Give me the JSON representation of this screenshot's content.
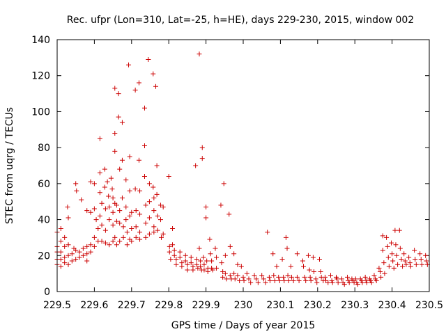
{
  "chart_data": {
    "type": "scatter",
    "title": "Rec. ufpr (Lon=310, Lat=-25, h=HE), days 229-230, 2015, window 002",
    "xlabel": "GPS time / Days of year 2015",
    "ylabel": "STEC from uqrg / TECUs",
    "xlim": [
      229.5,
      230.5
    ],
    "ylim": [
      0,
      140
    ],
    "xticks": [
      229.5,
      229.6,
      229.7,
      229.8,
      229.9,
      230.0,
      230.1,
      230.2,
      230.3,
      230.4,
      230.5
    ],
    "xtick_labels": [
      "229.5",
      "229.6",
      "229.7",
      "229.8",
      "229.9",
      "230",
      "230.1",
      "230.2",
      "230.3",
      "230.4",
      "230.5"
    ],
    "yticks": [
      0,
      20,
      40,
      60,
      80,
      100,
      120,
      140
    ],
    "ytick_labels": [
      "0",
      "20",
      "40",
      "60",
      "80",
      "100",
      "120",
      "140"
    ],
    "marker": "plus",
    "color": "#cc0000",
    "grid": false,
    "points": [
      [
        229.5,
        33
      ],
      [
        229.5,
        25
      ],
      [
        229.5,
        22
      ],
      [
        229.5,
        18
      ],
      [
        229.5,
        15
      ],
      [
        229.51,
        35
      ],
      [
        229.51,
        28
      ],
      [
        229.51,
        22
      ],
      [
        229.51,
        18
      ],
      [
        229.51,
        14
      ],
      [
        229.52,
        30
      ],
      [
        229.52,
        25
      ],
      [
        229.52,
        19
      ],
      [
        229.52,
        16
      ],
      [
        229.528,
        47
      ],
      [
        229.53,
        41
      ],
      [
        229.53,
        26
      ],
      [
        229.53,
        20
      ],
      [
        229.53,
        15
      ],
      [
        229.54,
        21
      ],
      [
        229.54,
        17
      ],
      [
        229.545,
        24
      ],
      [
        229.55,
        60
      ],
      [
        229.552,
        56
      ],
      [
        229.55,
        23
      ],
      [
        229.55,
        18
      ],
      [
        229.56,
        22
      ],
      [
        229.56,
        19
      ],
      [
        229.565,
        51
      ],
      [
        229.57,
        24
      ],
      [
        229.57,
        20
      ],
      [
        229.58,
        45
      ],
      [
        229.58,
        25
      ],
      [
        229.58,
        21
      ],
      [
        229.58,
        17
      ],
      [
        229.59,
        61
      ],
      [
        229.59,
        44
      ],
      [
        229.59,
        26
      ],
      [
        229.59,
        22
      ],
      [
        229.6,
        60
      ],
      [
        229.6,
        46
      ],
      [
        229.6,
        30
      ],
      [
        229.6,
        25
      ],
      [
        229.605,
        40
      ],
      [
        229.61,
        35
      ],
      [
        229.61,
        28
      ],
      [
        229.615,
        85
      ],
      [
        229.615,
        66
      ],
      [
        229.615,
        55
      ],
      [
        229.615,
        42
      ],
      [
        229.62,
        49
      ],
      [
        229.62,
        37
      ],
      [
        229.62,
        28
      ],
      [
        229.628,
        68
      ],
      [
        229.628,
        58
      ],
      [
        229.63,
        46
      ],
      [
        229.63,
        34
      ],
      [
        229.63,
        27
      ],
      [
        229.635,
        61
      ],
      [
        229.638,
        53
      ],
      [
        229.64,
        47
      ],
      [
        229.64,
        40
      ],
      [
        229.64,
        26
      ],
      [
        229.645,
        63
      ],
      [
        229.648,
        57
      ],
      [
        229.65,
        52
      ],
      [
        229.65,
        44
      ],
      [
        229.65,
        37
      ],
      [
        229.65,
        28
      ],
      [
        229.655,
        113
      ],
      [
        229.655,
        88
      ],
      [
        229.655,
        78
      ],
      [
        229.655,
        49
      ],
      [
        229.655,
        30
      ],
      [
        229.66,
        48
      ],
      [
        229.66,
        39
      ],
      [
        229.66,
        26
      ],
      [
        229.665,
        110
      ],
      [
        229.665,
        97
      ],
      [
        229.668,
        68
      ],
      [
        229.668,
        45
      ],
      [
        229.668,
        38
      ],
      [
        229.668,
        28
      ],
      [
        229.675,
        94
      ],
      [
        229.675,
        73
      ],
      [
        229.675,
        52
      ],
      [
        229.678,
        36
      ],
      [
        229.678,
        30
      ],
      [
        229.685,
        62
      ],
      [
        229.685,
        47
      ],
      [
        229.685,
        40
      ],
      [
        229.688,
        33
      ],
      [
        229.688,
        26
      ],
      [
        229.692,
        126
      ],
      [
        229.695,
        75
      ],
      [
        229.695,
        56
      ],
      [
        229.695,
        42
      ],
      [
        229.695,
        29
      ],
      [
        229.7,
        44
      ],
      [
        229.7,
        35
      ],
      [
        229.7,
        28
      ],
      [
        229.71,
        112
      ],
      [
        229.71,
        57
      ],
      [
        229.712,
        45
      ],
      [
        229.712,
        36
      ],
      [
        229.712,
        30
      ],
      [
        229.72,
        116
      ],
      [
        229.72,
        73
      ],
      [
        229.722,
        56
      ],
      [
        229.722,
        43
      ],
      [
        229.722,
        33
      ],
      [
        229.722,
        29
      ],
      [
        229.735,
        102
      ],
      [
        229.735,
        81
      ],
      [
        229.735,
        64
      ],
      [
        229.738,
        48
      ],
      [
        229.738,
        38
      ],
      [
        229.738,
        30
      ],
      [
        229.745,
        129
      ],
      [
        229.748,
        60
      ],
      [
        229.748,
        50
      ],
      [
        229.748,
        41
      ],
      [
        229.748,
        32
      ],
      [
        229.758,
        121
      ],
      [
        229.758,
        58
      ],
      [
        229.76,
        52
      ],
      [
        229.76,
        45
      ],
      [
        229.76,
        36
      ],
      [
        229.76,
        33
      ],
      [
        229.765,
        114
      ],
      [
        229.768,
        70
      ],
      [
        229.768,
        54
      ],
      [
        229.77,
        42
      ],
      [
        229.77,
        34
      ],
      [
        229.778,
        48
      ],
      [
        229.778,
        40
      ],
      [
        229.78,
        30
      ],
      [
        229.785,
        47
      ],
      [
        229.785,
        32
      ],
      [
        229.8,
        64
      ],
      [
        229.802,
        25
      ],
      [
        229.802,
        22
      ],
      [
        229.805,
        18
      ],
      [
        229.81,
        35
      ],
      [
        229.81,
        26
      ],
      [
        229.815,
        23
      ],
      [
        229.815,
        20
      ],
      [
        229.82,
        18
      ],
      [
        229.82,
        15
      ],
      [
        229.83,
        22
      ],
      [
        229.83,
        19
      ],
      [
        229.835,
        16
      ],
      [
        229.835,
        14
      ],
      [
        229.845,
        20
      ],
      [
        229.845,
        17
      ],
      [
        229.85,
        15
      ],
      [
        229.85,
        12
      ],
      [
        229.86,
        19
      ],
      [
        229.86,
        16
      ],
      [
        229.865,
        14
      ],
      [
        229.865,
        12
      ],
      [
        229.872,
        70
      ],
      [
        229.875,
        18
      ],
      [
        229.875,
        15
      ],
      [
        229.878,
        13
      ],
      [
        229.882,
        132
      ],
      [
        229.882,
        24
      ],
      [
        229.885,
        17
      ],
      [
        229.885,
        14
      ],
      [
        229.888,
        12
      ],
      [
        229.89,
        80
      ],
      [
        229.89,
        74
      ],
      [
        229.893,
        19
      ],
      [
        229.895,
        15
      ],
      [
        229.895,
        12
      ],
      [
        229.9,
        47
      ],
      [
        229.9,
        41
      ],
      [
        229.902,
        17
      ],
      [
        229.905,
        13
      ],
      [
        229.905,
        11
      ],
      [
        229.91,
        29
      ],
      [
        229.912,
        21
      ],
      [
        229.915,
        17
      ],
      [
        229.915,
        13
      ],
      [
        229.918,
        12
      ],
      [
        229.925,
        24
      ],
      [
        229.928,
        19
      ],
      [
        229.928,
        13
      ],
      [
        229.94,
        48
      ],
      [
        229.942,
        16
      ],
      [
        229.945,
        11
      ],
      [
        229.945,
        8
      ],
      [
        229.948,
        60
      ],
      [
        229.952,
        20
      ],
      [
        229.952,
        10
      ],
      [
        229.955,
        7
      ],
      [
        229.962,
        43
      ],
      [
        229.965,
        25
      ],
      [
        229.965,
        9
      ],
      [
        229.968,
        7
      ],
      [
        229.975,
        21
      ],
      [
        229.975,
        10
      ],
      [
        229.978,
        7
      ],
      [
        229.985,
        15
      ],
      [
        229.985,
        9
      ],
      [
        229.99,
        6
      ],
      [
        229.995,
        14
      ],
      [
        230.0,
        8
      ],
      [
        230.002,
        6
      ],
      [
        230.01,
        10
      ],
      [
        230.015,
        7
      ],
      [
        230.02,
        5
      ],
      [
        230.03,
        9
      ],
      [
        230.035,
        7
      ],
      [
        230.04,
        5
      ],
      [
        230.05,
        9
      ],
      [
        230.055,
        7
      ],
      [
        230.06,
        5
      ],
      [
        230.065,
        33
      ],
      [
        230.07,
        8
      ],
      [
        230.072,
        6
      ],
      [
        230.08,
        21
      ],
      [
        230.082,
        9
      ],
      [
        230.085,
        6
      ],
      [
        230.09,
        14
      ],
      [
        230.095,
        8
      ],
      [
        230.098,
        6
      ],
      [
        230.105,
        18
      ],
      [
        230.108,
        8
      ],
      [
        230.11,
        6
      ],
      [
        230.115,
        30
      ],
      [
        230.118,
        24
      ],
      [
        230.12,
        9
      ],
      [
        230.122,
        6
      ],
      [
        230.128,
        14
      ],
      [
        230.13,
        8
      ],
      [
        230.135,
        6
      ],
      [
        230.145,
        21
      ],
      [
        230.145,
        8
      ],
      [
        230.15,
        6
      ],
      [
        230.16,
        17
      ],
      [
        230.162,
        14
      ],
      [
        230.165,
        8
      ],
      [
        230.168,
        6
      ],
      [
        230.175,
        20
      ],
      [
        230.178,
        12
      ],
      [
        230.18,
        8
      ],
      [
        230.182,
        6
      ],
      [
        230.188,
        19
      ],
      [
        230.19,
        11
      ],
      [
        230.195,
        7
      ],
      [
        230.198,
        5
      ],
      [
        230.205,
        18
      ],
      [
        230.208,
        11
      ],
      [
        230.21,
        8
      ],
      [
        230.215,
        6
      ],
      [
        230.22,
        8
      ],
      [
        230.222,
        6
      ],
      [
        230.228,
        5
      ],
      [
        230.235,
        9
      ],
      [
        230.238,
        6
      ],
      [
        230.24,
        5
      ],
      [
        230.25,
        8
      ],
      [
        230.252,
        7
      ],
      [
        230.255,
        5
      ],
      [
        230.265,
        7
      ],
      [
        230.268,
        5
      ],
      [
        230.272,
        4
      ],
      [
        230.28,
        8
      ],
      [
        230.282,
        6
      ],
      [
        230.285,
        5
      ],
      [
        230.292,
        7
      ],
      [
        230.295,
        6
      ],
      [
        230.298,
        5
      ],
      [
        230.302,
        7
      ],
      [
        230.305,
        5
      ],
      [
        230.308,
        4
      ],
      [
        230.315,
        7
      ],
      [
        230.318,
        6
      ],
      [
        230.32,
        5
      ],
      [
        230.328,
        8
      ],
      [
        230.33,
        6
      ],
      [
        230.332,
        5
      ],
      [
        230.34,
        7
      ],
      [
        230.342,
        6
      ],
      [
        230.345,
        5
      ],
      [
        230.352,
        9
      ],
      [
        230.355,
        7
      ],
      [
        230.358,
        6
      ],
      [
        230.365,
        13
      ],
      [
        230.368,
        11
      ],
      [
        230.37,
        8
      ],
      [
        230.375,
        31
      ],
      [
        230.375,
        23
      ],
      [
        230.378,
        16
      ],
      [
        230.38,
        10
      ],
      [
        230.385,
        30
      ],
      [
        230.388,
        25
      ],
      [
        230.39,
        19
      ],
      [
        230.392,
        14
      ],
      [
        230.398,
        27
      ],
      [
        230.4,
        21
      ],
      [
        230.402,
        17
      ],
      [
        230.405,
        13
      ],
      [
        230.408,
        34
      ],
      [
        230.41,
        26
      ],
      [
        230.412,
        20
      ],
      [
        230.415,
        15
      ],
      [
        230.42,
        34
      ],
      [
        230.422,
        24
      ],
      [
        230.425,
        18
      ],
      [
        230.428,
        14
      ],
      [
        230.432,
        21
      ],
      [
        230.435,
        17
      ],
      [
        230.438,
        15
      ],
      [
        230.445,
        19
      ],
      [
        230.448,
        16
      ],
      [
        230.45,
        14
      ],
      [
        230.46,
        23
      ],
      [
        230.462,
        18
      ],
      [
        230.465,
        15
      ],
      [
        230.475,
        21
      ],
      [
        230.478,
        18
      ],
      [
        230.48,
        15
      ],
      [
        230.49,
        20
      ],
      [
        230.492,
        17
      ],
      [
        230.495,
        15
      ]
    ]
  }
}
